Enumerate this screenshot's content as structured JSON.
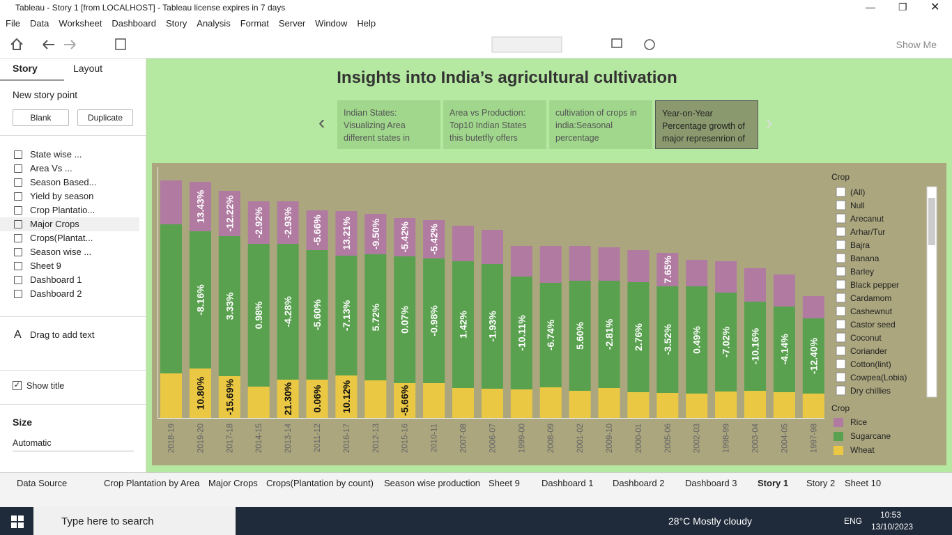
{
  "window": {
    "title": "Tableau - Story 1 [from LOCALHOST] - Tableau license expires in 7 days"
  },
  "menu": [
    "File",
    "Data",
    "Worksheet",
    "Dashboard",
    "Story",
    "Analysis",
    "Format",
    "Server",
    "Window",
    "Help"
  ],
  "toolbar": {
    "show_me": "Show Me"
  },
  "sidebar": {
    "tabs": [
      "Story",
      "Layout"
    ],
    "new_story_point": "New story point",
    "buttons": [
      "Blank",
      "Duplicate"
    ],
    "sheets": [
      "State wise ...",
      "Area Vs ...",
      "Season Based...",
      "Yield by season",
      "Crop Plantatio...",
      "Major Crops",
      "Crops(Plantat...",
      "Season wise ...",
      "Sheet 9",
      "Dashboard 1",
      "Dashboard 2"
    ],
    "drag_text": "Drag to add text",
    "show_title": "Show title",
    "size_label": "Size",
    "size_value": "Automatic"
  },
  "story": {
    "title": "Insights into India’s agricultural cultivation",
    "points": [
      "Indian States: Visualizing Area different states in",
      "Area vs Production: Top10 Indian States this butetfly offers",
      "cultivation of crops in india:Seasonal percentage",
      "Year-on-Year Percentage  growth of major represenrion of"
    ]
  },
  "chart_data": {
    "type": "bar",
    "stacked": true,
    "categories": [
      "2018-19",
      "2019-20",
      "2017-18",
      "2014-15",
      "2013-14",
      "2011-12",
      "2016-17",
      "2012-13",
      "2015-16",
      "2010-11",
      "2007-08",
      "2006-07",
      "1999-00",
      "2008-09",
      "2001-02",
      "2009-10",
      "2000-01",
      "2005-06",
      "2002-03",
      "1998-99",
      "2003-04",
      "2004-05",
      "1997-98"
    ],
    "series": [
      {
        "name": "Wheat",
        "color": "#ebc844",
        "label_color": "#111111",
        "values": [
          64,
          71,
          60,
          45,
          55,
          55,
          61,
          54,
          50,
          50,
          43,
          42,
          41,
          44,
          39,
          43,
          37,
          36,
          35,
          38,
          39,
          37,
          35
        ],
        "labels": [
          null,
          "10.80%",
          "-15.69%",
          null,
          "21.30%",
          "0.06%",
          "10.12%",
          null,
          "-5.66%",
          null,
          null,
          null,
          null,
          null,
          null,
          null,
          null,
          null,
          null,
          null,
          null,
          null,
          null
        ]
      },
      {
        "name": "Sugarcane",
        "color": "#59a14f",
        "label_color": "#ffffff",
        "values": [
          214,
          197,
          201,
          205,
          195,
          186,
          172,
          181,
          182,
          179,
          182,
          179,
          162,
          150,
          158,
          154,
          158,
          153,
          154,
          142,
          128,
          123,
          108
        ],
        "labels": [
          null,
          "-8.16%",
          "3.33%",
          "0.98%",
          "-4.28%",
          "-5.60%",
          "-7.13%",
          "5.72%",
          "0.07%",
          "-0.98%",
          "1.42%",
          "-1.93%",
          "-10.11%",
          "-6.74%",
          "5.60%",
          "-2.81%",
          "2.76%",
          "-3.52%",
          "0.49%",
          "-7.02%",
          "-10.16%",
          "-4.14%",
          "-12.40%"
        ]
      },
      {
        "name": "Rice",
        "color": "#b07aa1",
        "label_color": "#ffffff",
        "values": [
          63,
          71,
          65,
          61,
          61,
          57,
          64,
          58,
          55,
          55,
          51,
          49,
          44,
          53,
          50,
          48,
          46,
          48,
          38,
          45,
          48,
          46,
          32
        ],
        "labels": [
          null,
          "13.43%",
          "-12.22%",
          "-2.92%",
          "-2.93%",
          "-5.66%",
          "13.21%",
          "-9.50%",
          "-5.42%",
          "-5.42%",
          null,
          null,
          null,
          null,
          null,
          null,
          null,
          "7.65%",
          null,
          null,
          null,
          null,
          null
        ]
      }
    ],
    "ylim": [
      0,
      360
    ],
    "legend_title": "Crop",
    "background": "#aba67e"
  },
  "filter": {
    "title": "Crop",
    "items": [
      "(All)",
      "Null",
      "Arecanut",
      "Arhar/Tur",
      "Bajra",
      "Banana",
      "Barley",
      "Black pepper",
      "Cardamom",
      "Cashewnut",
      "Castor seed",
      "Coconut",
      "Coriander",
      "Cotton(lint)",
      "Cowpea(Lobia)",
      "Dry chillies"
    ]
  },
  "tabs": [
    "Data Source",
    "Crop Plantation by Area",
    "Major Crops",
    "Crops(Plantation by count)",
    "Season wise production",
    "Sheet 9",
    "Dashboard 1",
    "Dashboard 2",
    "Dashboard 3",
    "Story 1",
    "Story 2",
    "Sheet 10"
  ],
  "taskbar": {
    "search": "Type here to search",
    "weather": "28°C Mostly cloudy",
    "language": "ENG",
    "time": "10:53",
    "date": "13/10/2023"
  }
}
